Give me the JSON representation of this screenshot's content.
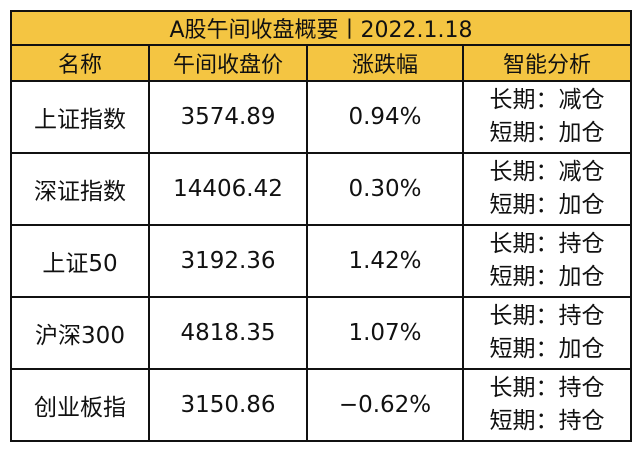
{
  "title": "A股午间收盘概要丨2022.1.18",
  "headers": [
    "名称",
    "午间收盘价",
    "涨跌幅",
    "智能分析"
  ],
  "colors": {
    "header_bg": "#f4c542",
    "up": "#b22222",
    "down": "#7cc242",
    "border": "#111111"
  },
  "rows": [
    {
      "name": "上证指数",
      "price": "3574.89",
      "change": "0.94%",
      "trend": "up",
      "long": "长期：减仓",
      "short": "短期：加仓"
    },
    {
      "name": "深证指数",
      "price": "14406.42",
      "change": "0.30%",
      "trend": "up",
      "long": "长期：减仓",
      "short": "短期：加仓"
    },
    {
      "name": "上证50",
      "price": "3192.36",
      "change": "1.42%",
      "trend": "up",
      "long": "长期：持仓",
      "short": "短期：加仓"
    },
    {
      "name": "沪深300",
      "price": "4818.35",
      "change": "1.07%",
      "trend": "up",
      "long": "长期：持仓",
      "short": "短期：加仓"
    },
    {
      "name": "创业板指",
      "price": "3150.86",
      "change": "−0.62%",
      "trend": "down",
      "long": "长期：持仓",
      "short": "短期：持仓"
    }
  ]
}
